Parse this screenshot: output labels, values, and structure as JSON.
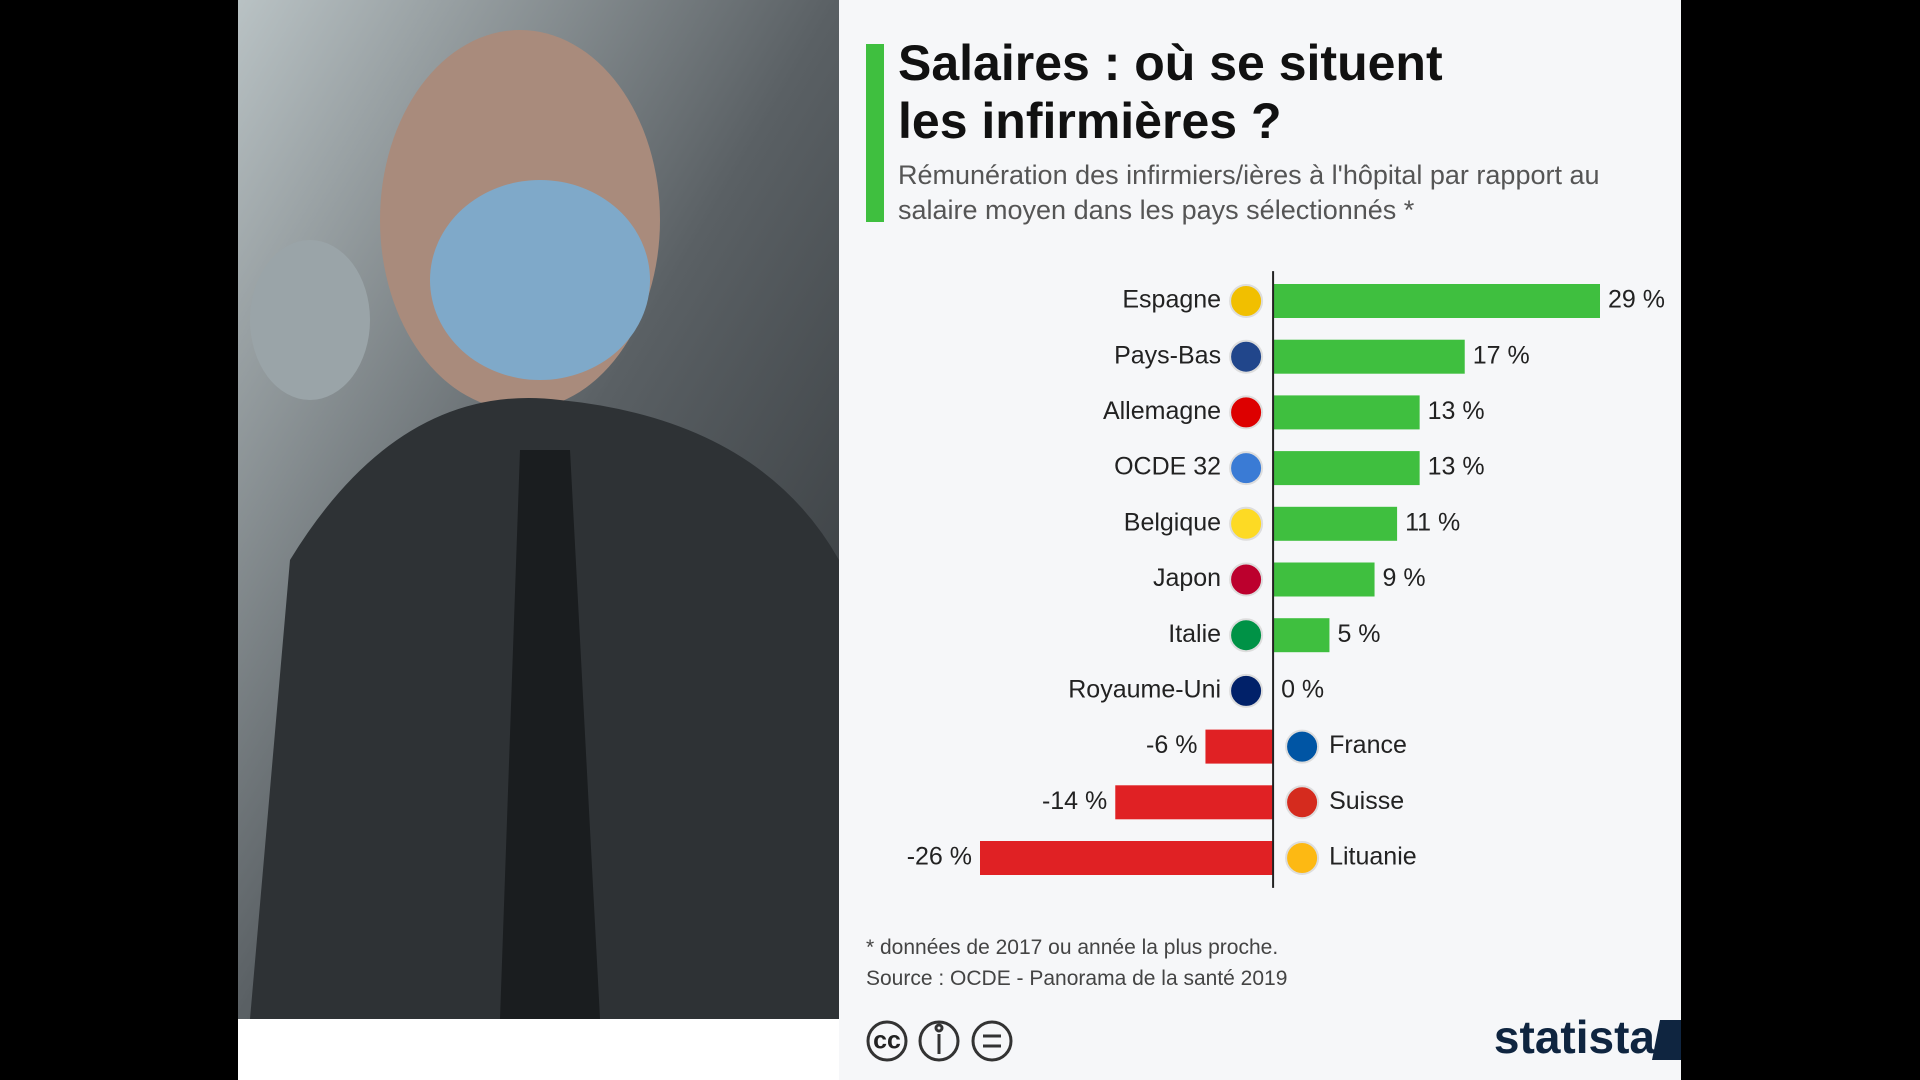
{
  "chart_data": {
    "type": "bar",
    "title": "Salaires : où se situent\nles infirmières ?",
    "subtitle": "Rémunération des infirmiers/ières à l'hôpital par rapport au salaire moyen dans les pays sélectionnés *",
    "categories": [
      "Espagne",
      "Pays-Bas",
      "Allemagne",
      "OCDE 32",
      "Belgique",
      "Japon",
      "Italie",
      "Royaume-Uni",
      "France",
      "Suisse",
      "Lituanie"
    ],
    "values": [
      29,
      17,
      13,
      13,
      11,
      9,
      5,
      0,
      -6,
      -14,
      -26
    ],
    "value_labels": [
      "29 %",
      "17 %",
      "13 %",
      "13 %",
      "11 %",
      "9 %",
      "5 %",
      "0 %",
      "-6 %",
      "-14 %",
      "-26 %"
    ],
    "color_positive": "#3fbf3f",
    "color_negative": "#e02124",
    "footnote": "* données de 2017 ou année la plus proche.",
    "source": "Source : OCDE - Panorama de la santé 2019",
    "logo": "statista"
  }
}
